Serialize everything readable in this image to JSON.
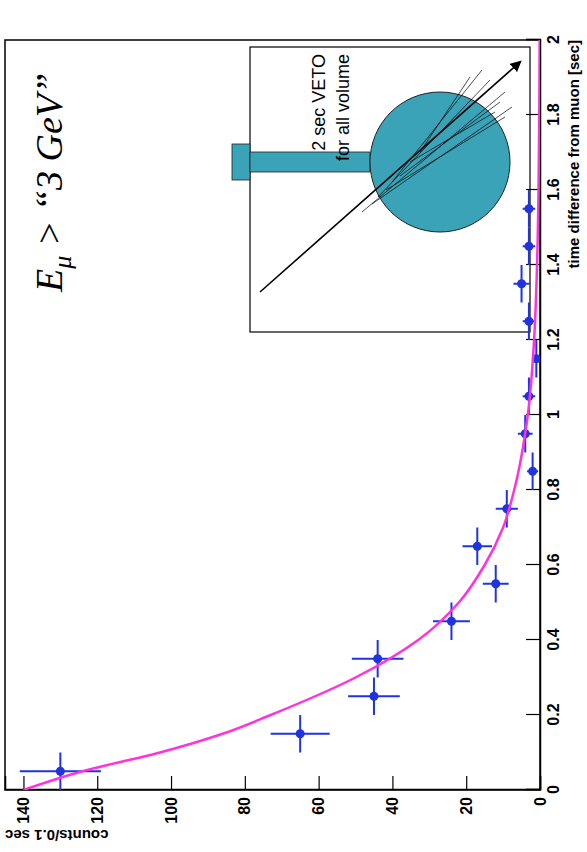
{
  "chart_data": {
    "type": "scatter",
    "x_label": "time difference from muon [sec]",
    "y_label": "counts/0.1 sec",
    "xlim": [
      0,
      2
    ],
    "xticks": [
      0,
      0.2,
      0.4,
      0.6,
      0.8,
      1,
      1.2,
      1.4,
      1.6,
      1.8,
      2
    ],
    "ylim": [
      0,
      145
    ],
    "yticks": [
      0,
      20,
      40,
      60,
      80,
      100,
      120,
      140
    ],
    "grid": false,
    "series": [
      {
        "type": "scatter",
        "color": "#1f33e0",
        "marker": "circle",
        "x": [
          0.05,
          0.15,
          0.25,
          0.35,
          0.45,
          0.55,
          0.65,
          0.75,
          0.85,
          0.95,
          1.05,
          1.15,
          1.25,
          1.35,
          1.45,
          1.55
        ],
        "values": [
          130,
          65,
          45,
          44,
          24,
          12,
          17,
          9,
          2,
          4,
          3,
          1,
          3,
          5,
          3,
          3
        ],
        "errors": [
          11,
          8,
          7,
          7,
          5,
          3.5,
          4,
          3,
          1.5,
          2,
          1.7,
          1,
          1.7,
          2.2,
          1.7,
          1.7
        ],
        "x_errors": [
          0.05,
          0.05,
          0.05,
          0.05,
          0.05,
          0.05,
          0.05,
          0.05,
          0.05,
          0.05,
          0.05,
          0.05,
          0.05,
          0.05,
          0.05,
          0.05
        ]
      },
      {
        "type": "line",
        "color": "#ff33dd",
        "line_style": "solid",
        "x": [
          0,
          0.05,
          0.1,
          0.15,
          0.2,
          0.3,
          0.4,
          0.5,
          0.6,
          0.7,
          0.8,
          1.0,
          1.2,
          1.4,
          1.6,
          1.8,
          2.0
        ],
        "values": [
          140,
          124,
          103,
          86,
          73,
          50,
          33,
          22,
          15,
          10,
          7,
          3.3,
          1.6,
          0.8,
          0.4,
          0.2,
          0.1
        ]
      }
    ],
    "annotations": {
      "cut": {
        "main": "E",
        "sub": "μ",
        "rest": " > “3 GeV”"
      },
      "veto": [
        "2 sec VETO",
        "for all volume"
      ]
    }
  }
}
